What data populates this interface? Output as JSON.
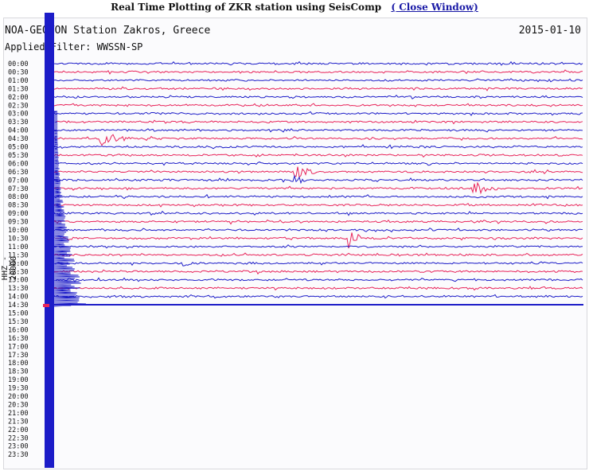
{
  "window": {
    "title": "Real Time Plotting of ZKR station using SeisComp",
    "close_link": "( Close Window)"
  },
  "header": {
    "station": "NOA-GEOTON Station Zakros, Greece",
    "date": "2015-01-10",
    "filter": "Applied Filter: WWSSN-SP",
    "channel": "HHZ - 20000"
  },
  "time_labels": [
    "00:00",
    "00:30",
    "01:00",
    "01:30",
    "02:00",
    "02:30",
    "03:00",
    "03:30",
    "04:00",
    "04:30",
    "05:00",
    "05:30",
    "06:00",
    "06:30",
    "07:00",
    "07:30",
    "08:00",
    "08:30",
    "09:00",
    "09:30",
    "10:00",
    "10:30",
    "11:00",
    "11:30",
    "12:00",
    "12:30",
    "13:00",
    "13:30",
    "14:00",
    "14:30",
    "15:00",
    "15:30",
    "16:00",
    "16:30",
    "17:00",
    "17:30",
    "18:00",
    "18:30",
    "19:00",
    "19:30",
    "20:00",
    "20:30",
    "21:00",
    "21:30",
    "22:00",
    "22:30",
    "23:00",
    "23:30"
  ],
  "colors": {
    "trace_a": "#1c1cc8",
    "trace_b": "#e8245a",
    "text": "#111111"
  }
}
